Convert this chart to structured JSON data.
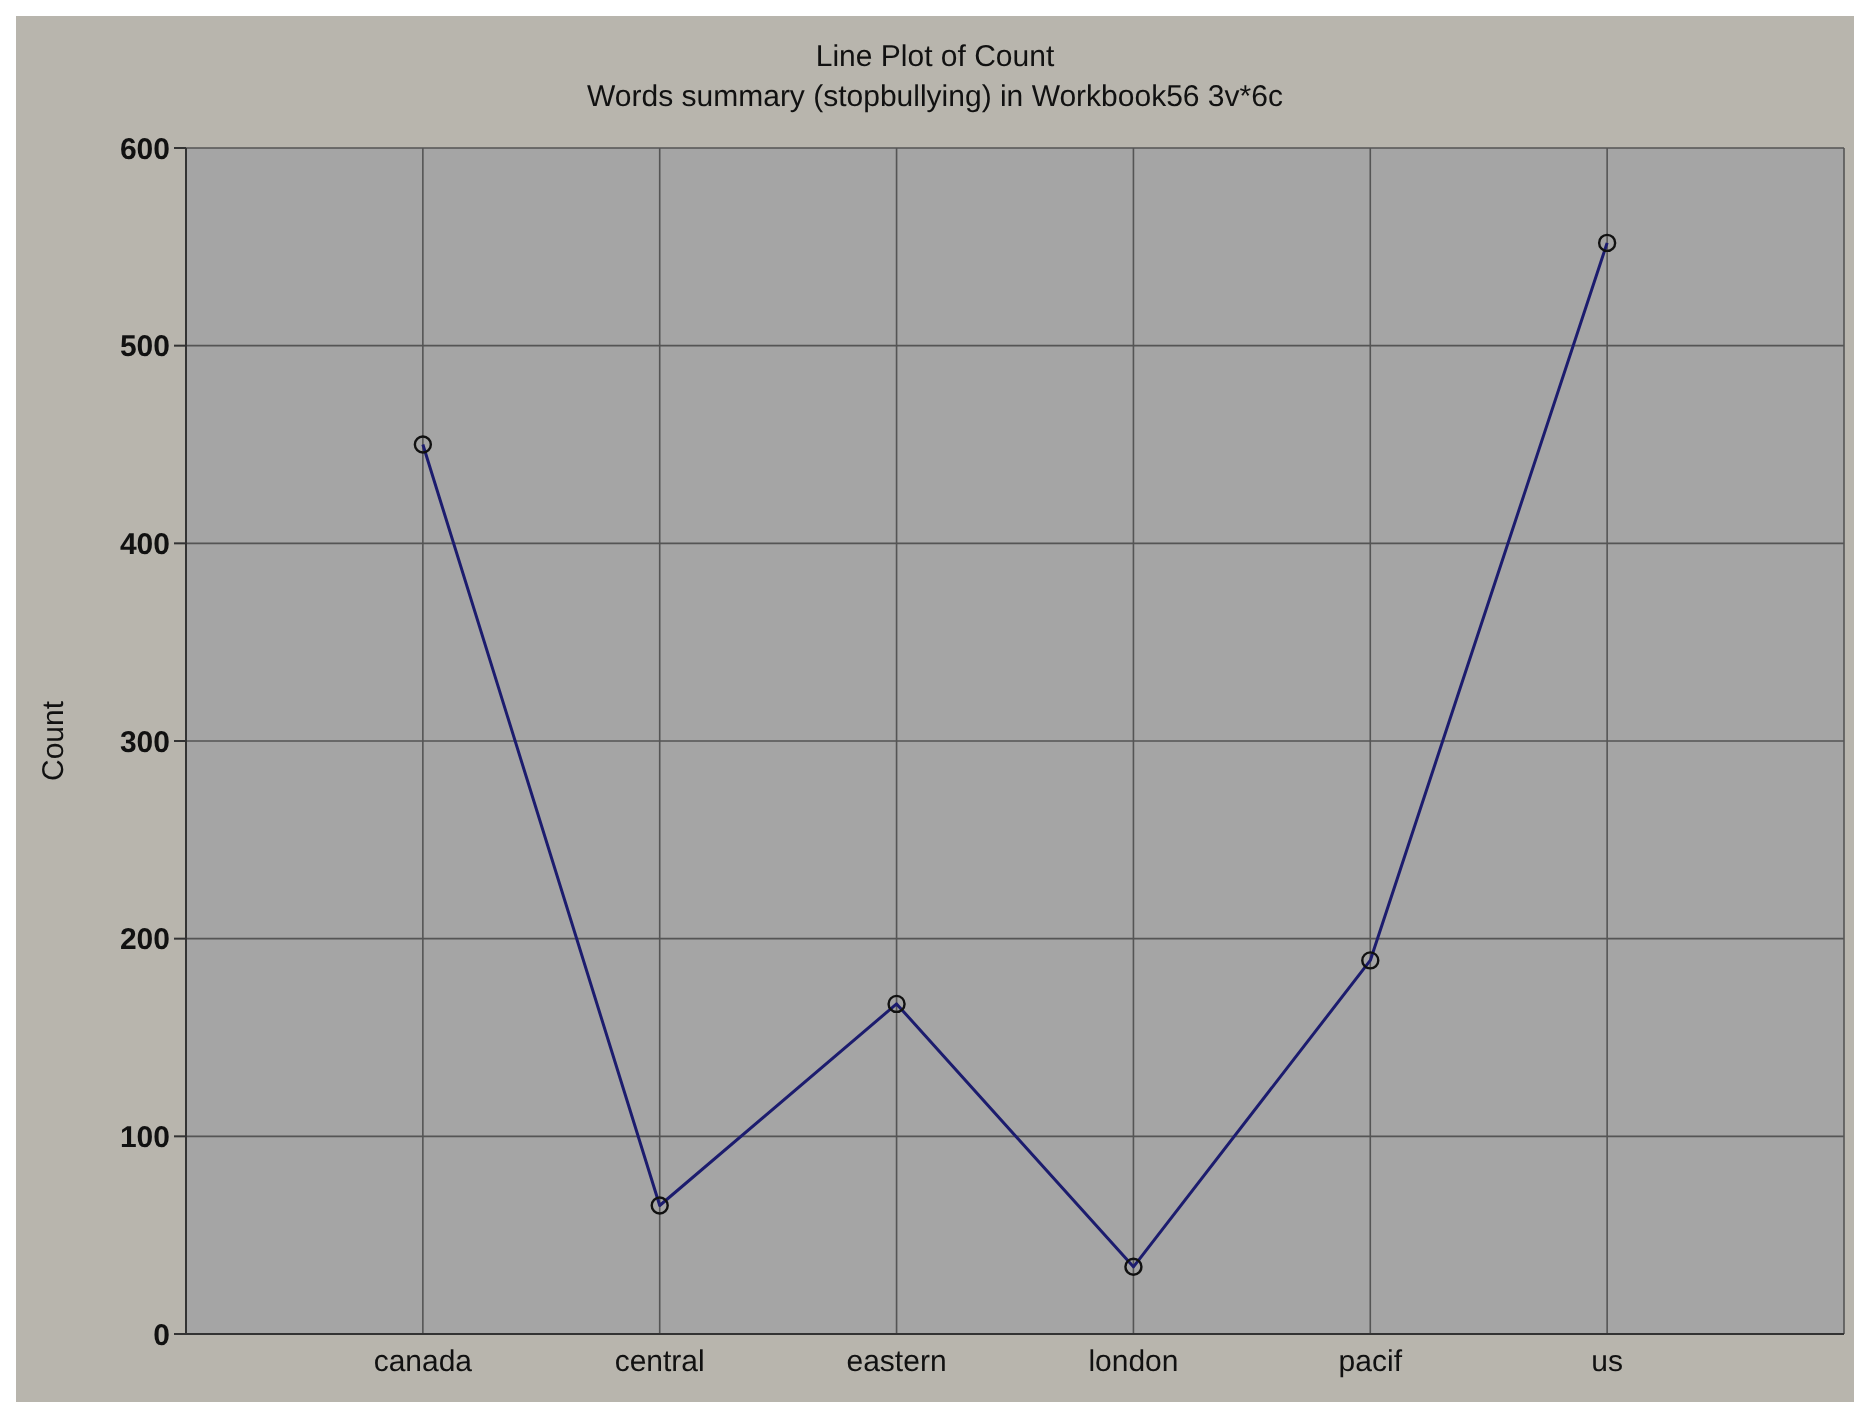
{
  "chart_data": {
    "type": "line",
    "title": "Line Plot of Count",
    "subtitle": "Words summary (stopbullying) in Workbook56 3v*6c",
    "ylabel": "Count",
    "categories": [
      "canada",
      "central",
      "eastern",
      "london",
      "pacif",
      "us"
    ],
    "series": [
      {
        "color": "#1c1c6e",
        "values": [
          450,
          65,
          167,
          34,
          189,
          552
        ]
      }
    ],
    "ylim": [
      0,
      600
    ],
    "yticks": [
      0,
      100,
      200,
      300,
      400,
      500,
      600
    ],
    "grid": true,
    "marker": "circle",
    "line_style": "solid"
  }
}
